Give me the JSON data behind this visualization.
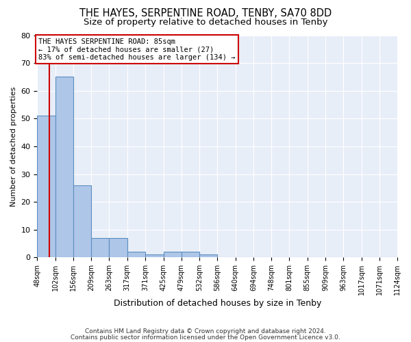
{
  "title": "THE HAYES, SERPENTINE ROAD, TENBY, SA70 8DD",
  "subtitle": "Size of property relative to detached houses in Tenby",
  "xlabel": "Distribution of detached houses by size in Tenby",
  "ylabel": "Number of detached properties",
  "footer1": "Contains HM Land Registry data © Crown copyright and database right 2024.",
  "footer2": "Contains public sector information licensed under the Open Government Licence v3.0.",
  "annotation_title": "THE HAYES SERPENTINE ROAD: 85sqm",
  "annotation_line2": "← 17% of detached houses are smaller (27)",
  "annotation_line3": "83% of semi-detached houses are larger (134) →",
  "bin_edges": [
    48,
    102,
    156,
    209,
    263,
    317,
    371,
    425,
    479,
    532,
    586,
    640,
    694,
    748,
    801,
    855,
    909,
    963,
    1017,
    1071,
    1124
  ],
  "bar_values": [
    51,
    65,
    26,
    7,
    7,
    2,
    1,
    2,
    2,
    1,
    0,
    0,
    0,
    0,
    0,
    0,
    0,
    0,
    0,
    0
  ],
  "bar_color": "#aec6e8",
  "bar_edge_color": "#5a8fc0",
  "vline_color": "#cc0000",
  "vline_x": 85,
  "ylim": [
    0,
    80
  ],
  "yticks": [
    0,
    10,
    20,
    30,
    40,
    50,
    60,
    70,
    80
  ],
  "bg_color": "#e8eef8",
  "grid_color": "#ffffff",
  "fig_bg_color": "#ffffff",
  "annotation_box_color": "#ffffff",
  "annotation_box_edge": "#cc0000",
  "title_fontsize": 10.5,
  "subtitle_fontsize": 9.5,
  "tick_labels": [
    "48sqm",
    "102sqm",
    "156sqm",
    "209sqm",
    "263sqm",
    "317sqm",
    "371sqm",
    "425sqm",
    "479sqm",
    "532sqm",
    "586sqm",
    "640sqm",
    "694sqm",
    "748sqm",
    "801sqm",
    "855sqm",
    "909sqm",
    "963sqm",
    "1017sqm",
    "1071sqm",
    "1124sqm"
  ]
}
